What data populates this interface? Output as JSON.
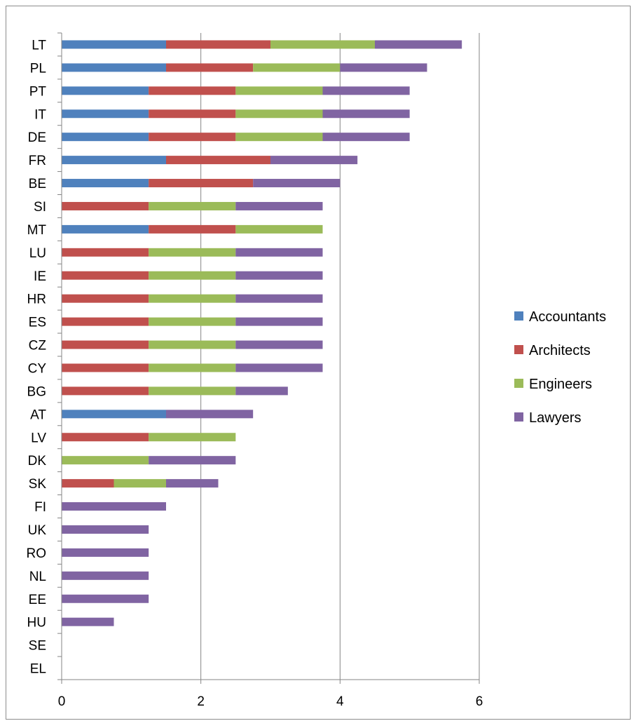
{
  "chart_data": {
    "type": "bar",
    "orientation": "horizontal",
    "stacked": true,
    "title": "",
    "xlabel": "",
    "ylabel": "",
    "xlim": [
      0,
      6
    ],
    "xticks": [
      0,
      2,
      4,
      6
    ],
    "grid": "vertical gridlines at major x ticks",
    "legend_position": "right",
    "categories": [
      "LT",
      "PL",
      "PT",
      "IT",
      "DE",
      "FR",
      "BE",
      "SI",
      "MT",
      "LU",
      "IE",
      "HR",
      "ES",
      "CZ",
      "CY",
      "BG",
      "AT",
      "LV",
      "DK",
      "SK",
      "FI",
      "UK",
      "RO",
      "NL",
      "EE",
      "HU",
      "SE",
      "EL"
    ],
    "series": [
      {
        "name": "Accountants",
        "color": "#4f81bd",
        "values": [
          1.5,
          1.5,
          1.25,
          1.25,
          1.25,
          1.5,
          1.25,
          0,
          1.25,
          0,
          0,
          0,
          0,
          0,
          0,
          0,
          1.5,
          0,
          0,
          0,
          0,
          0,
          0,
          0,
          0,
          0,
          0,
          0
        ]
      },
      {
        "name": "Architects",
        "color": "#c0504d",
        "values": [
          1.5,
          1.25,
          1.25,
          1.25,
          1.25,
          1.5,
          1.5,
          1.25,
          1.25,
          1.25,
          1.25,
          1.25,
          1.25,
          1.25,
          1.25,
          1.25,
          0,
          1.25,
          0,
          0.75,
          0,
          0,
          0,
          0,
          0,
          0,
          0,
          0
        ]
      },
      {
        "name": "Engineers",
        "color": "#9bbb59",
        "values": [
          1.5,
          1.25,
          1.25,
          1.25,
          1.25,
          0,
          0,
          1.25,
          1.25,
          1.25,
          1.25,
          1.25,
          1.25,
          1.25,
          1.25,
          1.25,
          0,
          1.25,
          1.25,
          0.75,
          0,
          0,
          0,
          0,
          0,
          0,
          0,
          0
        ]
      },
      {
        "name": "Lawyers",
        "color": "#8064a2",
        "values": [
          1.25,
          1.25,
          1.25,
          1.25,
          1.25,
          1.25,
          1.25,
          1.25,
          0,
          1.25,
          1.25,
          1.25,
          1.25,
          1.25,
          1.25,
          0.75,
          1.25,
          0,
          1.25,
          0.75,
          1.5,
          1.25,
          1.25,
          1.25,
          1.25,
          0.75,
          0,
          0
        ]
      }
    ]
  },
  "colors": {
    "axis": "#868686",
    "gridline": "#868686",
    "frame": "#8c8c8c"
  }
}
